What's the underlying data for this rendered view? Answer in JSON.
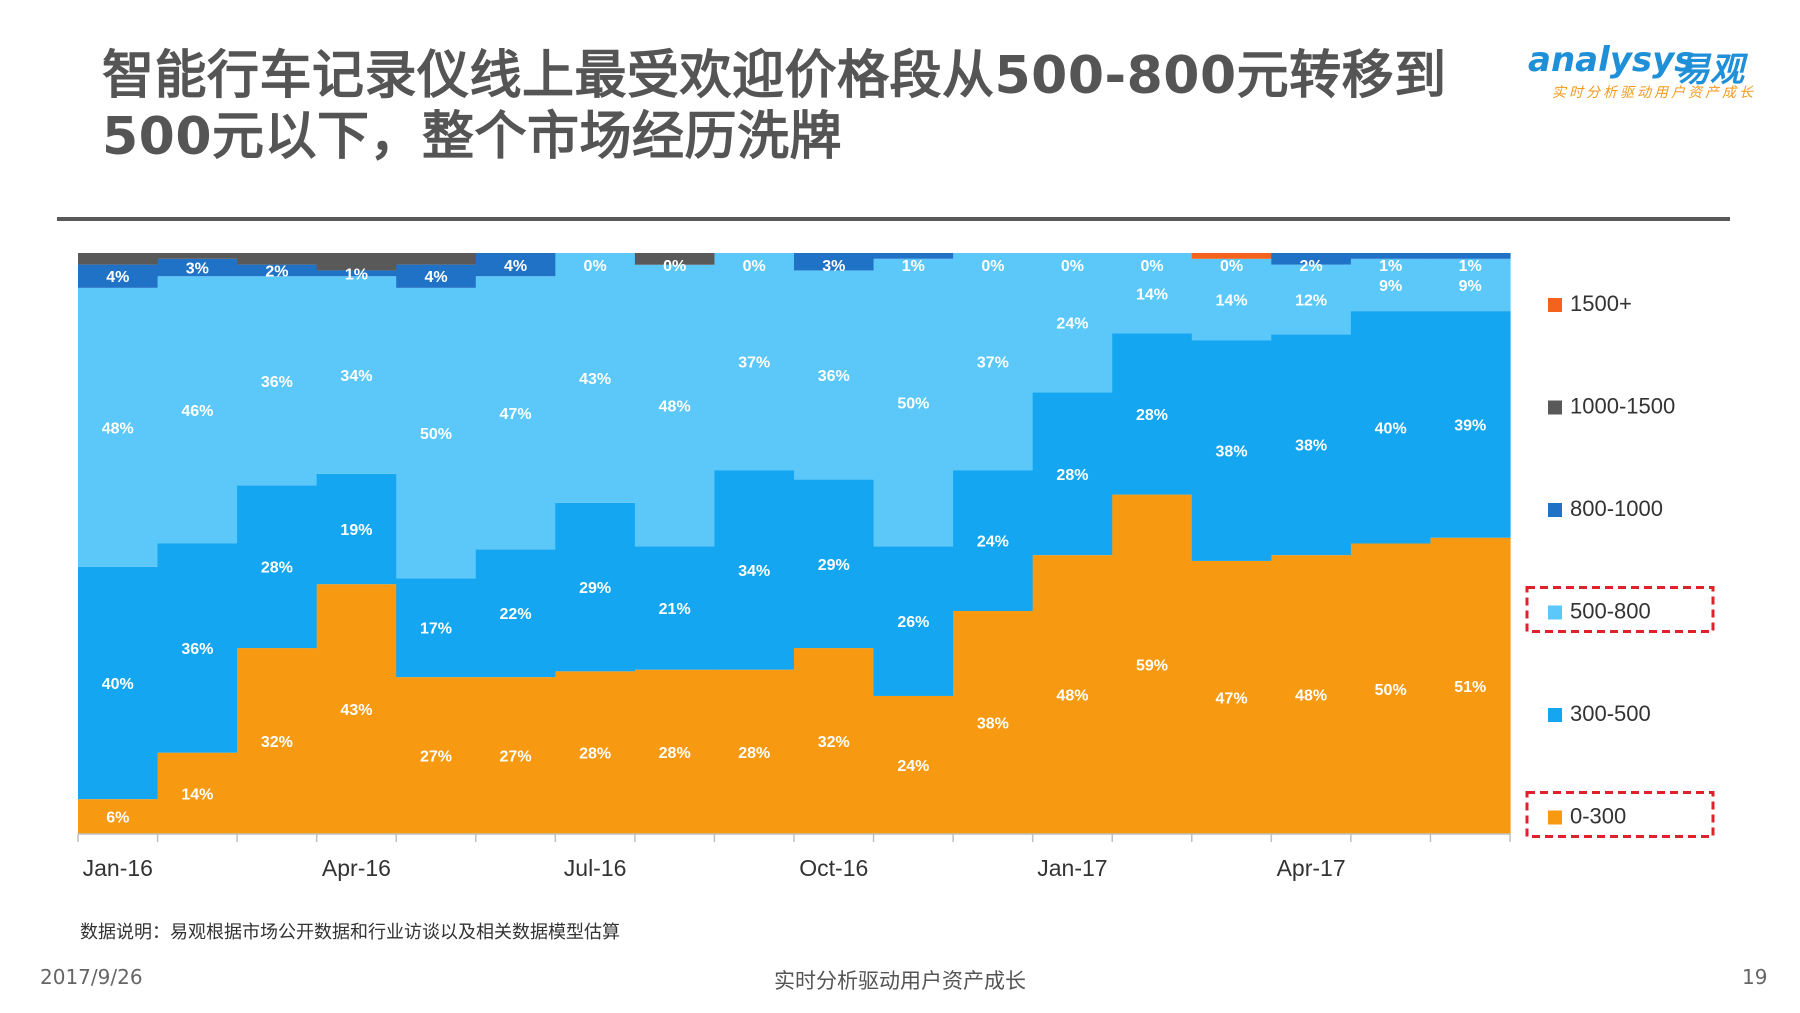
{
  "slide": {
    "title_line1": "智能行车记录仪线上最受欢迎价格段从500-800元转移到",
    "title_line2": "500元以下，整个市场经历洗牌",
    "logo_en": "analysys",
    "logo_cn": "易观",
    "logo_tagline": "实时分析驱动用户资产成长",
    "note": "数据说明：易观根据市场公开数据和行业访谈以及相关数据模型估算",
    "footer_date": "2017/9/26",
    "footer_center": "实时分析驱动用户资产成长",
    "page_number": "19"
  },
  "chart_data": {
    "type": "bar",
    "stacked": "percent",
    "x_tick_labels": [
      "Jan-16",
      "Apr-16",
      "Jul-16",
      "Oct-16",
      "Jan-17",
      "Apr-17"
    ],
    "x_tick_positions": [
      0,
      3,
      6,
      9,
      12,
      15
    ],
    "categories_count": 18,
    "ylim": [
      0,
      100
    ],
    "legend_placement": "right",
    "highlighted_legend_items": [
      "500-800",
      "0-300"
    ],
    "series": [
      {
        "name": "0-300",
        "color": "#F79A12",
        "values": [
          6,
          14,
          32,
          43,
          27,
          27,
          28,
          28,
          28,
          32,
          24,
          38,
          48,
          59,
          47,
          48,
          50,
          51
        ],
        "labels": [
          "6%",
          "14%",
          "32%",
          "43%",
          "27%",
          "27%",
          "28%",
          "28%",
          "28%",
          "32%",
          "24%",
          "38%",
          "48%",
          "59%",
          "47%",
          "48%",
          "50%",
          "51%"
        ]
      },
      {
        "name": "300-500",
        "color": "#14A6F0",
        "values": [
          40,
          36,
          28,
          19,
          17,
          22,
          29,
          21,
          34,
          29,
          26,
          24,
          28,
          28,
          38,
          38,
          40,
          39
        ],
        "labels": [
          "40%",
          "36%",
          "28%",
          "19%",
          "17%",
          "22%",
          "29%",
          "21%",
          "34%",
          "29%",
          "26%",
          "24%",
          "28%",
          "28%",
          "38%",
          "38%",
          "40%",
          "39%"
        ]
      },
      {
        "name": "500-800",
        "color": "#5BC8F9",
        "values": [
          48,
          46,
          36,
          34,
          50,
          47,
          43,
          48,
          37,
          36,
          50,
          37,
          24,
          14,
          14,
          12,
          9,
          9
        ],
        "labels": [
          "48%",
          "46%",
          "36%",
          "34%",
          "50%",
          "47%",
          "43%",
          "48%",
          "37%",
          "36%",
          "50%",
          "37%",
          "24%",
          "14%",
          "14%",
          "12%",
          "9%",
          "9%"
        ]
      },
      {
        "name": "800-1000",
        "color": "#1F72C6",
        "values": [
          4,
          3,
          2,
          1,
          4,
          4,
          0,
          0,
          0,
          3,
          1,
          0,
          0,
          0,
          0,
          2,
          1,
          1
        ],
        "labels": [
          "4%",
          "3%",
          "2%",
          "1%",
          "4%",
          "4%",
          "0%",
          "0%",
          "0%",
          "3%",
          "1%",
          "0%",
          "0%",
          "0%",
          "0%",
          "2%",
          "1%",
          "1%"
        ]
      },
      {
        "name": "1000-1500",
        "color": "#595959",
        "values": [
          2,
          1,
          2,
          3,
          2,
          0,
          0,
          2,
          0,
          0,
          0,
          0,
          0,
          0,
          0,
          0,
          0,
          0
        ],
        "labels": []
      },
      {
        "name": "1500+",
        "color": "#F4621E",
        "values": [
          0,
          0,
          0,
          0,
          0,
          0,
          0,
          0,
          0,
          0,
          0,
          0,
          0,
          0,
          1,
          0,
          0,
          0
        ],
        "labels": []
      }
    ],
    "legend_order": [
      "1500+",
      "1000-1500",
      "800-1000",
      "500-800",
      "300-500",
      "0-300"
    ]
  }
}
